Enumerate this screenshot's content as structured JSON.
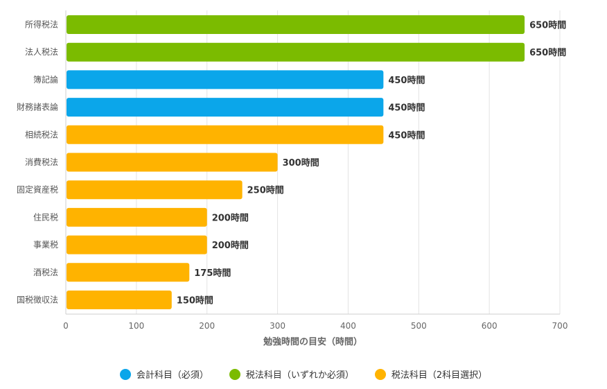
{
  "chart_data": {
    "type": "bar",
    "orientation": "horizontal",
    "xlabel": "勉強時間の目安（時間）",
    "xlim": [
      0,
      700
    ],
    "xticks": [
      "0",
      "100",
      "200",
      "300",
      "400",
      "500",
      "600",
      "700"
    ],
    "grid": true,
    "legend_position": "bottom",
    "value_suffix": "時間",
    "categories": [
      "所得税法",
      "法人税法",
      "簿記論",
      "財務諸表論",
      "相続税法",
      "消費税法",
      "固定資産税",
      "住民税",
      "事業税",
      "酒税法",
      "国税徴収法"
    ],
    "values": [
      650,
      650,
      450,
      450,
      450,
      300,
      250,
      200,
      200,
      175,
      150
    ],
    "value_labels": [
      "650時間",
      "650時間",
      "450時間",
      "450時間",
      "450時間",
      "300時間",
      "250時間",
      "200時間",
      "200時間",
      "175時間",
      "150時間"
    ],
    "groups": [
      1,
      1,
      0,
      0,
      2,
      2,
      2,
      2,
      2,
      2,
      2
    ],
    "legend": [
      {
        "name": "会計科目（必須）",
        "color": "#0ba6ea"
      },
      {
        "name": "税法科目（いずれか必須）",
        "color": "#7bbb00"
      },
      {
        "name": "税法科目（2科目選択）",
        "color": "#ffb300"
      }
    ]
  }
}
